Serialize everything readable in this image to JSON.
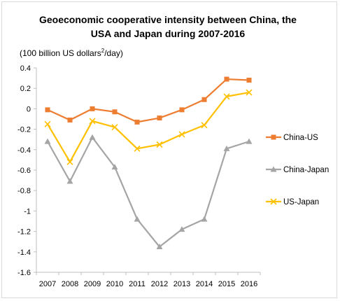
{
  "chart_data": {
    "type": "line",
    "title_line1": "Geoeconomic cooperative intensity between China, the",
    "title_line2": "USA and Japan during 2007-2016",
    "unit_prefix": "(100 billion US dollars",
    "unit_sup": "2",
    "unit_suffix": "/day)",
    "categories": [
      "2007",
      "2008",
      "2009",
      "2010",
      "2011",
      "2012",
      "2013",
      "2014",
      "2015",
      "2016"
    ],
    "ylim": [
      -1.6,
      0.4
    ],
    "yticks": [
      0.4,
      0.2,
      0,
      -0.2,
      -0.4,
      -0.6,
      -0.8,
      -1,
      -1.2,
      -1.4,
      -1.6
    ],
    "ytick_labels": [
      "0.4",
      "0.2",
      "0",
      "-0.2",
      "-0.4",
      "-0.6",
      "-0.8",
      "-1",
      "-1.2",
      "-1.4",
      "-1.6"
    ],
    "grid": false,
    "legend_position": "right",
    "series": [
      {
        "name": "China-US",
        "color": "#ed7d31",
        "marker": "square",
        "values": [
          -0.01,
          -0.11,
          0.0,
          -0.03,
          -0.13,
          -0.09,
          -0.01,
          0.09,
          0.29,
          0.28
        ]
      },
      {
        "name": "China-Japan",
        "color": "#a5a5a5",
        "marker": "triangle",
        "values": [
          -0.32,
          -0.71,
          -0.28,
          -0.57,
          -1.08,
          -1.35,
          -1.18,
          -1.08,
          -0.39,
          -0.32
        ]
      },
      {
        "name": "US-Japan",
        "color": "#ffc000",
        "marker": "x",
        "values": [
          -0.15,
          -0.52,
          -0.12,
          -0.18,
          -0.39,
          -0.35,
          -0.25,
          -0.16,
          0.12,
          0.16
        ]
      }
    ]
  }
}
